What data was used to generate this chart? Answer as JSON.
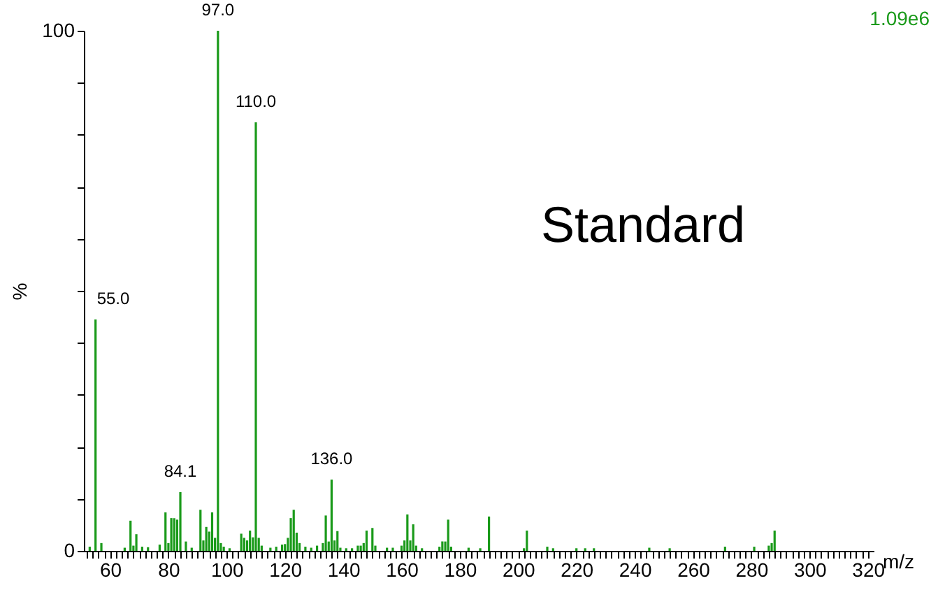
{
  "chart_data": {
    "type": "bar",
    "xlabel": "m/z",
    "ylabel": "%",
    "annotations": [
      "Standard",
      "1.09e6",
      {
        "text": "55.0",
        "x": 55,
        "y": 44.5
      },
      {
        "text": "84.1",
        "x": 84.1,
        "y": 11.3
      },
      {
        "text": "97.0",
        "x": 97,
        "y": 100
      },
      {
        "text": "110.0",
        "x": 110,
        "y": 82.4
      },
      {
        "text": "136.0",
        "x": 136,
        "y": 13.7
      }
    ],
    "x": [
      53,
      55,
      57,
      65,
      67,
      68,
      69,
      71,
      73,
      77,
      79,
      80,
      81,
      82,
      83,
      84.1,
      86,
      88,
      91,
      92,
      93,
      94,
      95,
      96,
      97,
      98,
      99,
      101,
      105,
      106,
      107,
      108,
      109,
      110,
      111,
      112,
      115,
      117,
      119,
      120,
      121,
      122,
      123,
      124,
      125,
      127,
      129,
      131,
      133,
      134,
      135,
      136,
      137,
      138,
      139,
      141,
      143,
      145,
      146,
      147,
      148,
      150,
      151,
      155,
      157,
      160,
      161,
      162,
      163,
      164,
      165,
      167,
      173,
      174,
      175,
      176,
      177,
      183,
      187,
      190,
      202,
      203,
      210,
      212,
      220,
      223,
      226,
      245,
      252,
      271,
      281,
      286,
      287,
      288
    ],
    "series": [
      {
        "color": "#1a9a1a",
        "values": [
          0.8,
          44.5,
          1.5,
          0.6,
          5.8,
          1.0,
          3.2,
          0.8,
          0.7,
          1.2,
          7.4,
          1.5,
          6.3,
          6.3,
          6.0,
          11.3,
          1.8,
          0.6,
          7.9,
          2.0,
          4.6,
          3.7,
          7.4,
          2.5,
          100,
          1.5,
          0.8,
          0.5,
          3.3,
          2.5,
          2.0,
          3.9,
          2.6,
          82.4,
          2.5,
          1.0,
          0.6,
          0.8,
          1.2,
          1.3,
          2.5,
          6.3,
          7.9,
          3.5,
          1.5,
          0.8,
          0.6,
          1.0,
          1.5,
          6.8,
          1.8,
          13.7,
          2.0,
          3.8,
          0.6,
          0.5,
          0.5,
          1.0,
          1.0,
          1.5,
          3.9,
          4.4,
          1.0,
          0.6,
          0.6,
          1.0,
          2.0,
          7.0,
          2.0,
          5.1,
          1.0,
          0.5,
          0.8,
          1.8,
          1.8,
          6.0,
          0.8,
          0.6,
          0.5,
          6.6,
          0.5,
          3.9,
          0.8,
          0.5,
          0.5,
          0.5,
          0.5,
          0.6,
          0.5,
          0.8,
          0.8,
          1.0,
          1.5,
          3.9
        ]
      }
    ],
    "xlim": [
      51,
      322
    ],
    "ylim": [
      0,
      100
    ],
    "xticks": [
      {
        "value": 52,
        "label": null
      },
      {
        "value": 54,
        "label": null
      },
      {
        "value": 56,
        "label": null
      },
      {
        "value": 58,
        "label": null
      },
      60,
      {
        "value": 62,
        "label": null
      },
      {
        "value": 64,
        "label": null
      },
      {
        "value": 66,
        "label": null
      },
      {
        "value": 68,
        "label": null
      },
      {
        "value": 70,
        "label": null
      },
      {
        "value": 72,
        "label": null
      },
      {
        "value": 74,
        "label": null
      },
      {
        "value": 76,
        "label": null
      },
      {
        "value": 78,
        "label": null
      },
      80,
      {
        "value": 82,
        "label": null
      },
      {
        "value": 84,
        "label": null
      },
      {
        "value": 86,
        "label": null
      },
      {
        "value": 88,
        "label": null
      },
      {
        "value": 90,
        "label": null
      },
      {
        "value": 92,
        "label": null
      },
      {
        "value": 94,
        "label": null
      },
      {
        "value": 96,
        "label": null
      },
      {
        "value": 98,
        "label": null
      },
      100,
      {
        "value": 102,
        "label": null
      },
      {
        "value": 104,
        "label": null
      },
      {
        "value": 106,
        "label": null
      },
      {
        "value": 108,
        "label": null
      },
      {
        "value": 110,
        "label": null
      },
      {
        "value": 112,
        "label": null
      },
      {
        "value": 114,
        "label": null
      },
      {
        "value": 116,
        "label": null
      },
      {
        "value": 118,
        "label": null
      },
      120,
      {
        "value": 122,
        "label": null
      },
      {
        "value": 124,
        "label": null
      },
      {
        "value": 126,
        "label": null
      },
      {
        "value": 128,
        "label": null
      },
      {
        "value": 130,
        "label": null
      },
      {
        "value": 132,
        "label": null
      },
      {
        "value": 134,
        "label": null
      },
      {
        "value": 136,
        "label": null
      },
      {
        "value": 138,
        "label": null
      },
      140,
      {
        "value": 142,
        "label": null
      },
      {
        "value": 144,
        "label": null
      },
      {
        "value": 146,
        "label": null
      },
      {
        "value": 148,
        "label": null
      },
      {
        "value": 150,
        "label": null
      },
      {
        "value": 152,
        "label": null
      },
      {
        "value": 154,
        "label": null
      },
      {
        "value": 156,
        "label": null
      },
      {
        "value": 158,
        "label": null
      },
      160,
      {
        "value": 162,
        "label": null
      },
      {
        "value": 164,
        "label": null
      },
      {
        "value": 166,
        "label": null
      },
      {
        "value": 168,
        "label": null
      },
      {
        "value": 170,
        "label": null
      },
      {
        "value": 172,
        "label": null
      },
      {
        "value": 174,
        "label": null
      },
      {
        "value": 176,
        "label": null
      },
      {
        "value": 178,
        "label": null
      },
      180,
      {
        "value": 182,
        "label": null
      },
      {
        "value": 184,
        "label": null
      },
      {
        "value": 186,
        "label": null
      },
      {
        "value": 188,
        "label": null
      },
      {
        "value": 190,
        "label": null
      },
      {
        "value": 192,
        "label": null
      },
      {
        "value": 194,
        "label": null
      },
      {
        "value": 196,
        "label": null
      },
      {
        "value": 198,
        "label": null
      },
      200,
      {
        "value": 202,
        "label": null
      },
      {
        "value": 204,
        "label": null
      },
      {
        "value": 206,
        "label": null
      },
      {
        "value": 208,
        "label": null
      },
      {
        "value": 210,
        "label": null
      },
      {
        "value": 212,
        "label": null
      },
      {
        "value": 214,
        "label": null
      },
      {
        "value": 216,
        "label": null
      },
      {
        "value": 218,
        "label": null
      },
      220,
      {
        "value": 222,
        "label": null
      },
      {
        "value": 224,
        "label": null
      },
      {
        "value": 226,
        "label": null
      },
      {
        "value": 228,
        "label": null
      },
      {
        "value": 230,
        "label": null
      },
      {
        "value": 232,
        "label": null
      },
      {
        "value": 234,
        "label": null
      },
      {
        "value": 236,
        "label": null
      },
      {
        "value": 238,
        "label": null
      },
      240,
      {
        "value": 242,
        "label": null
      },
      {
        "value": 244,
        "label": null
      },
      {
        "value": 246,
        "label": null
      },
      {
        "value": 248,
        "label": null
      },
      {
        "value": 250,
        "label": null
      },
      {
        "value": 252,
        "label": null
      },
      {
        "value": 254,
        "label": null
      },
      {
        "value": 256,
        "label": null
      },
      {
        "value": 258,
        "label": null
      },
      260,
      {
        "value": 262,
        "label": null
      },
      {
        "value": 264,
        "label": null
      },
      {
        "value": 266,
        "label": null
      },
      {
        "value": 268,
        "label": null
      },
      {
        "value": 270,
        "label": null
      },
      {
        "value": 272,
        "label": null
      },
      {
        "value": 274,
        "label": null
      },
      {
        "value": 276,
        "label": null
      },
      {
        "value": 278,
        "label": null
      },
      280,
      {
        "value": 282,
        "label": null
      },
      {
        "value": 284,
        "label": null
      },
      {
        "value": 286,
        "label": null
      },
      {
        "value": 288,
        "label": null
      },
      {
        "value": 290,
        "label": null
      },
      {
        "value": 292,
        "label": null
      },
      {
        "value": 294,
        "label": null
      },
      {
        "value": 296,
        "label": null
      },
      {
        "value": 298,
        "label": null
      },
      300,
      {
        "value": 302,
        "label": null
      },
      {
        "value": 304,
        "label": null
      },
      {
        "value": 306,
        "label": null
      },
      {
        "value": 308,
        "label": null
      },
      {
        "value": 310,
        "label": null
      },
      {
        "value": 312,
        "label": null
      },
      {
        "value": 314,
        "label": null
      },
      {
        "value": 316,
        "label": null
      },
      {
        "value": 318,
        "label": null
      },
      320
    ],
    "yticks": [
      0,
      {
        "value": 10,
        "label": null
      },
      {
        "value": 20,
        "label": null
      },
      {
        "value": 30,
        "label": null
      },
      {
        "value": 40,
        "label": null
      },
      {
        "value": 50,
        "label": null
      },
      {
        "value": 60,
        "label": null
      },
      {
        "value": 70,
        "label": null
      },
      {
        "value": 80,
        "label": null
      },
      {
        "value": 90,
        "label": null
      },
      100
    ],
    "grid": false
  }
}
